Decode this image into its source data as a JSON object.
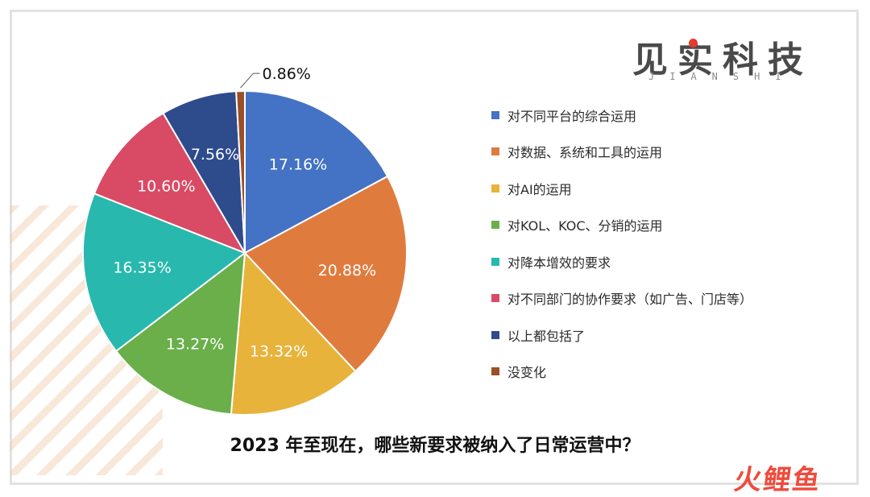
{
  "brand": {
    "name_cn": "见实科技",
    "name_en": "JIANSHI"
  },
  "question": "2023 年至现在，哪些新要求被纳入了日常运营中？",
  "watermark": "火鲤鱼",
  "chart_data": {
    "type": "pie",
    "title": "",
    "start_angle_deg": 0,
    "direction": "clockwise",
    "legend_position": "right",
    "slices": [
      {
        "label": "对不同平台的综合运用",
        "value": 17.16,
        "value_label": "17.16%",
        "color": "#4472C4"
      },
      {
        "label": "对数据、系统和工具的运用",
        "value": 20.88,
        "value_label": "20.88%",
        "color": "#E07B3E"
      },
      {
        "label": "对AI的运用",
        "value": 13.32,
        "value_label": "13.32%",
        "color": "#E8B33A"
      },
      {
        "label": "对KOL、KOC、分销的运用",
        "value": 13.27,
        "value_label": "13.27%",
        "color": "#6AAF4A"
      },
      {
        "label": "对降本增效的要求",
        "value": 16.35,
        "value_label": "16.35%",
        "color": "#28B8AE"
      },
      {
        "label": "对不同部门的协作要求（如广告、门店等）",
        "value": 10.6,
        "value_label": "10.60%",
        "color": "#D94A65"
      },
      {
        "label": "以上都包括了",
        "value": 7.56,
        "value_label": "7.56%",
        "color": "#2E4B8C"
      },
      {
        "label": "没变化",
        "value": 0.86,
        "value_label": "0.86%",
        "color": "#9A4F28"
      }
    ]
  }
}
